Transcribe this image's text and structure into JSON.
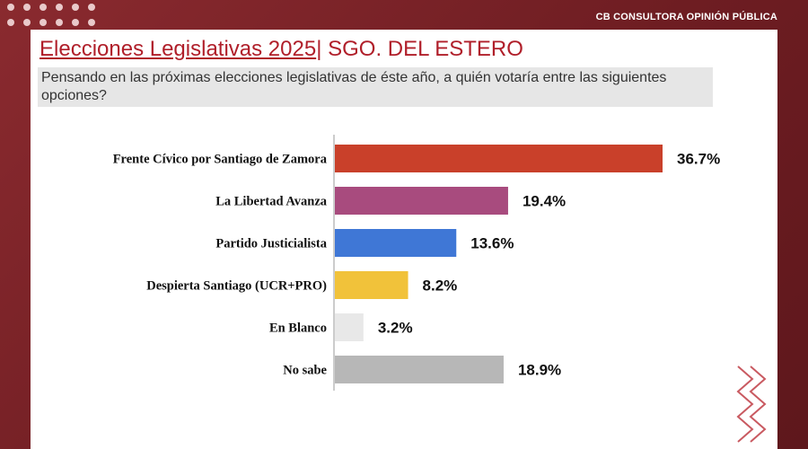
{
  "header": {
    "brand": "CB CONSULTORA OPINIÓN PÚBLICA"
  },
  "slide": {
    "title": "Elecciones Legislativas 2025",
    "title_sep": "|",
    "title_region": " SGO. DEL ESTERO",
    "question": "Pensando en las próximas elecciones legislativas de éste año, a quién votaría entre las siguientes opciones?"
  },
  "theme": {
    "frame": "#7a2026",
    "title_color": "#b01f2a"
  },
  "chart_data": {
    "type": "bar",
    "orientation": "horizontal",
    "categories": [
      "Frente Cívico por Santiago de Zamora",
      "La Libertad Avanza",
      "Partido Justicialista",
      "Despierta Santiago (UCR+PRO)",
      "En Blanco",
      "No sabe"
    ],
    "values": [
      36.7,
      19.4,
      13.6,
      8.2,
      3.2,
      18.9
    ],
    "value_labels": [
      "36.7%",
      "19.4%",
      "13.6%",
      "8.2%",
      "3.2%",
      "18.9%"
    ],
    "colors": [
      "#c9402a",
      "#a84b7e",
      "#3f77d6",
      "#f1c23a",
      "#e8e8e8",
      "#b7b7b7"
    ],
    "xlim": [
      0,
      40
    ],
    "grid": false,
    "legend": "none"
  }
}
